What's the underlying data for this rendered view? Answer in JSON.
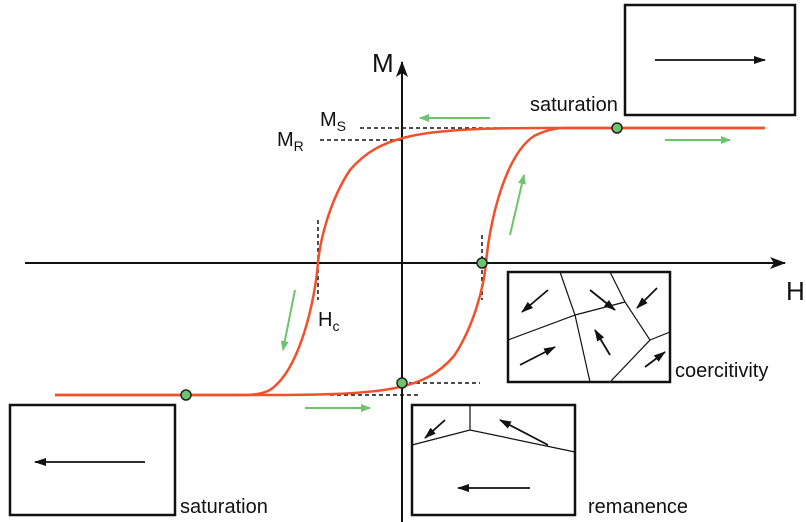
{
  "axes": {
    "y_label": "M",
    "x_label": "H"
  },
  "markers": [
    {
      "label": "M",
      "subscript": "S"
    },
    {
      "label": "M",
      "subscript": "R"
    },
    {
      "label": "H",
      "subscript": "c"
    }
  ],
  "states": [
    {
      "label": "saturation"
    },
    {
      "label": "coercitivity"
    },
    {
      "label": "saturation"
    },
    {
      "label": "remanence"
    }
  ]
}
